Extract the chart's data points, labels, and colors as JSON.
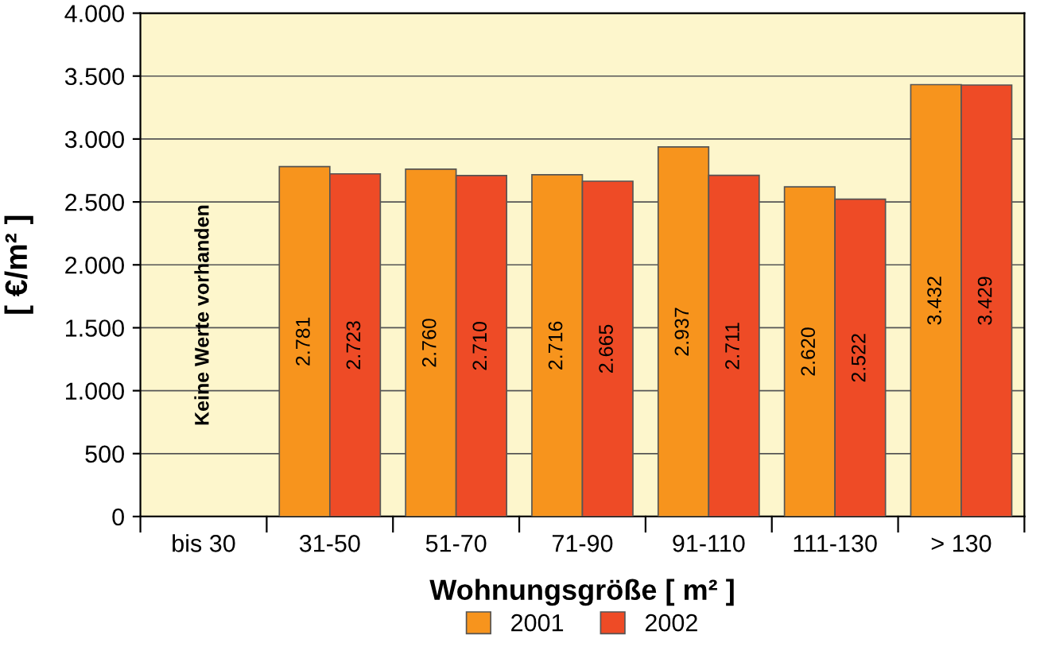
{
  "chart_data": {
    "type": "bar",
    "ylabel": "[ €/m² ]",
    "xlabel": "Wohnungsgröße [ m² ]",
    "categories": [
      "bis 30",
      "31-50",
      "51-70",
      "71-90",
      "91-110",
      "111-130",
      "> 130"
    ],
    "series": [
      {
        "name": "2001",
        "color": "#f7941d",
        "values": [
          null,
          2781,
          2760,
          2716,
          2937,
          2620,
          3432
        ],
        "value_labels": [
          null,
          "2.781",
          "2.760",
          "2.716",
          "2.937",
          "2.620",
          "3.432"
        ]
      },
      {
        "name": "2002",
        "color": "#ee4b26",
        "values": [
          null,
          2723,
          2710,
          2665,
          2711,
          2522,
          3429
        ],
        "value_labels": [
          null,
          "2.723",
          "2.710",
          "2.665",
          "2.711",
          "2.522",
          "3.429"
        ]
      }
    ],
    "ylim": [
      0,
      4000
    ],
    "yticks": [
      0,
      500,
      {
        "value": 1000,
        "label": "1.000"
      },
      {
        "value": 1500,
        "label": "1.500"
      },
      {
        "value": 2000,
        "label": "2.000"
      },
      {
        "value": 2500,
        "label": "2.500"
      },
      {
        "value": 3000,
        "label": "3.000"
      },
      {
        "value": 3500,
        "label": "3.500"
      },
      {
        "value": 4000,
        "label": "4.000"
      }
    ],
    "annotations": [
      "Keine Werte vorhanden"
    ],
    "grid": "y",
    "legend": "bottom"
  }
}
